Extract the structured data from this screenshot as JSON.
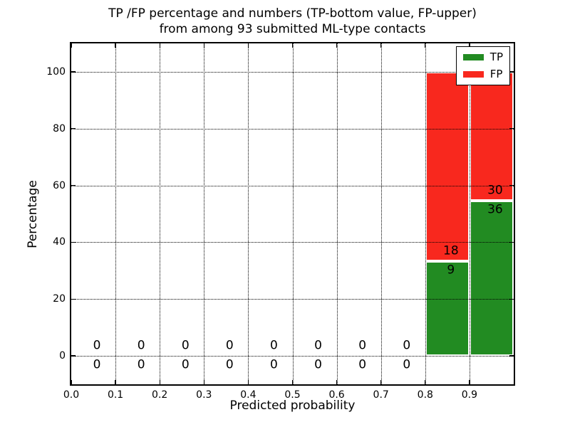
{
  "figure": {
    "title_lines": [
      "TP /FP percentage and numbers (TP-bottom value, FP-upper)",
      "from among 93 submitted ML-type contacts"
    ]
  },
  "chart_data": {
    "type": "bar",
    "stacked": true,
    "title": "TP /FP percentage and numbers (TP-bottom value, FP-upper) from among 93 submitted ML-type contacts",
    "xlabel": "Predicted probability",
    "ylabel": "Percentage",
    "xlim": [
      0.0,
      1.0
    ],
    "ylim": [
      -10,
      110
    ],
    "grid": "dotted, drawn above bars",
    "legend_position": "upper right",
    "legend": [
      {
        "label": "TP",
        "color": "#228b22"
      },
      {
        "label": "FP",
        "color": "#f8281e"
      }
    ],
    "xticks": [
      {
        "value": 0.0,
        "label": "0.0"
      },
      {
        "value": 0.1,
        "label": "0.1"
      },
      {
        "value": 0.2,
        "label": "0.2"
      },
      {
        "value": 0.3,
        "label": "0.3"
      },
      {
        "value": 0.4,
        "label": "0.4"
      },
      {
        "value": 0.5,
        "label": "0.5"
      },
      {
        "value": 0.6,
        "label": "0.6"
      },
      {
        "value": 0.7,
        "label": "0.7"
      },
      {
        "value": 0.8,
        "label": "0.8"
      },
      {
        "value": 0.9,
        "label": "0.9"
      }
    ],
    "yticks": [
      {
        "value": 0,
        "label": "0"
      },
      {
        "value": 20,
        "label": "20"
      },
      {
        "value": 40,
        "label": "40"
      },
      {
        "value": 60,
        "label": "60"
      },
      {
        "value": 80,
        "label": "80"
      },
      {
        "value": 100,
        "label": "100"
      }
    ],
    "total_contacts": 93,
    "bins": [
      {
        "x0": 0.0,
        "x1": 0.1,
        "tp": 0,
        "fp": 0,
        "tp_pct": 0,
        "fp_pct": 0
      },
      {
        "x0": 0.1,
        "x1": 0.2,
        "tp": 0,
        "fp": 0,
        "tp_pct": 0,
        "fp_pct": 0
      },
      {
        "x0": 0.2,
        "x1": 0.3,
        "tp": 0,
        "fp": 0,
        "tp_pct": 0,
        "fp_pct": 0
      },
      {
        "x0": 0.3,
        "x1": 0.4,
        "tp": 0,
        "fp": 0,
        "tp_pct": 0,
        "fp_pct": 0
      },
      {
        "x0": 0.4,
        "x1": 0.5,
        "tp": 0,
        "fp": 0,
        "tp_pct": 0,
        "fp_pct": 0
      },
      {
        "x0": 0.5,
        "x1": 0.6,
        "tp": 0,
        "fp": 0,
        "tp_pct": 0,
        "fp_pct": 0
      },
      {
        "x0": 0.6,
        "x1": 0.7,
        "tp": 0,
        "fp": 0,
        "tp_pct": 0,
        "fp_pct": 0
      },
      {
        "x0": 0.7,
        "x1": 0.8,
        "tp": 0,
        "fp": 0,
        "tp_pct": 0,
        "fp_pct": 0
      },
      {
        "x0": 0.8,
        "x1": 0.9,
        "tp": 9,
        "fp": 18,
        "tp_pct": 33.33,
        "fp_pct": 66.67
      },
      {
        "x0": 0.9,
        "x1": 1.0,
        "tp": 36,
        "fp": 30,
        "tp_pct": 54.55,
        "fp_pct": 45.45
      }
    ]
  }
}
